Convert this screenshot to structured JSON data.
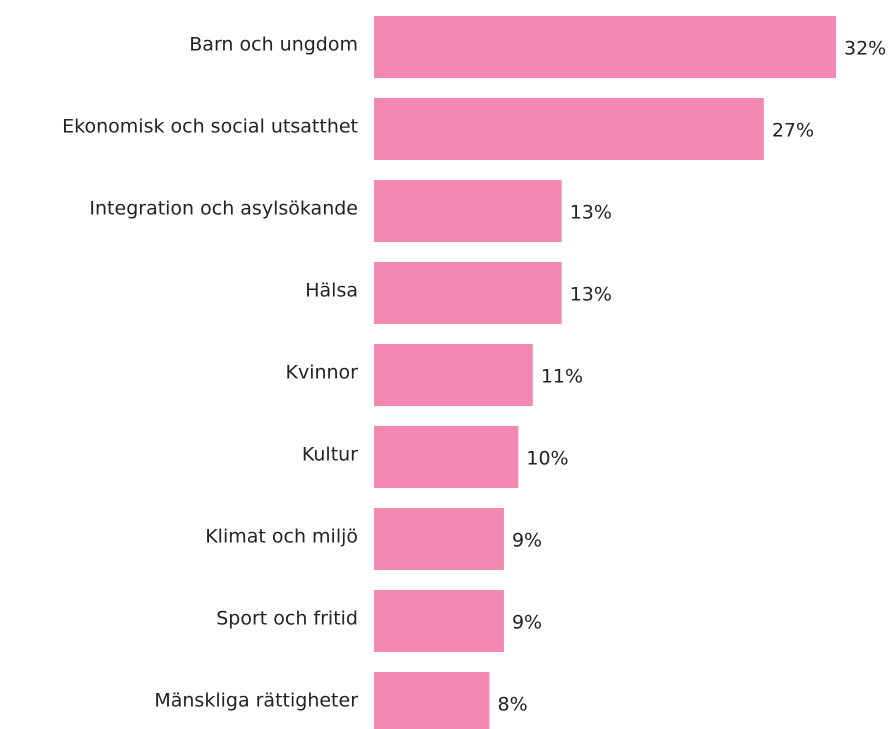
{
  "chart_data": {
    "type": "bar",
    "orientation": "horizontal",
    "categories": [
      "Barn och ungdom",
      "Ekonomisk och social utsatthet",
      "Integration och asylsökande",
      "Hälsa",
      "Kvinnor",
      "Kultur",
      "Klimat och miljö",
      "Sport och fritid",
      "Mänskliga rättigheter"
    ],
    "values": [
      32,
      27,
      13,
      13,
      11,
      10,
      9,
      9,
      8
    ],
    "value_labels": [
      "32%",
      "27%",
      "13%",
      "13%",
      "11%",
      "10%",
      "9%",
      "9%",
      "8%"
    ],
    "color": "#f389b0"
  }
}
